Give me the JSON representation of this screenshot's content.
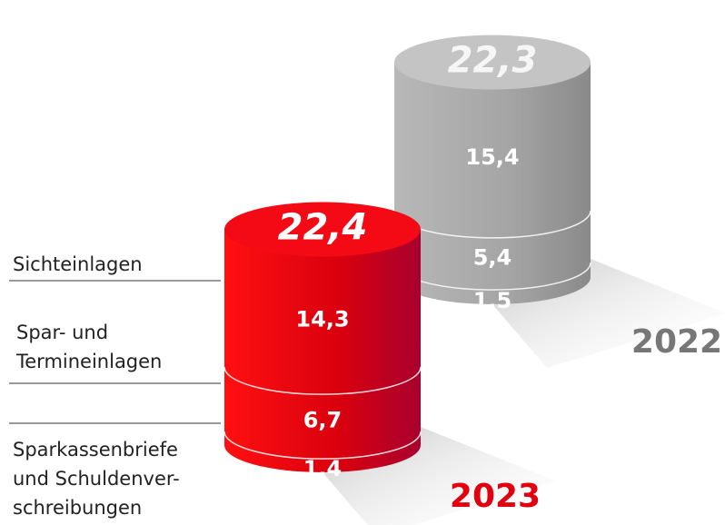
{
  "chart_data": {
    "type": "cylinder",
    "categories": [
      "2023",
      "2022"
    ],
    "colors": [
      "#e2000f",
      "#a9a9a9"
    ],
    "series": [
      {
        "name": "Sichteinlagen",
        "values": [
          14.3,
          15.4
        ],
        "value_labels": [
          "14,3",
          "15,4"
        ]
      },
      {
        "name": "Spar- und\nTermineinlagen",
        "values": [
          6.7,
          5.4
        ],
        "value_labels": [
          "6,7",
          "5,4"
        ]
      },
      {
        "name": "Sparkassenbriefe\nund Schuldenver-\nschreibungen",
        "values": [
          1.4,
          1.5
        ],
        "value_labels": [
          "1,4",
          "1,5"
        ]
      }
    ],
    "totals": [
      22.4,
      22.3
    ],
    "total_labels": [
      "22,4",
      "22,3"
    ]
  }
}
